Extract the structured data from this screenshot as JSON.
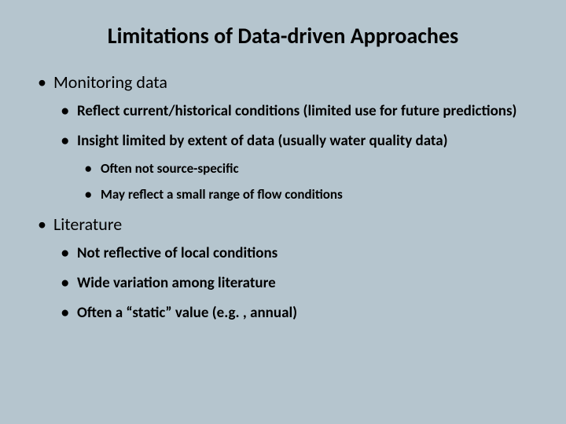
{
  "background_color": "#b5c5ce",
  "text_color": "#000000",
  "font_family": "Calibri",
  "title": {
    "text": "Limitations of Data-driven Approaches",
    "fontsize": 28,
    "weight": "bold",
    "align": "center"
  },
  "bullets": {
    "item0": {
      "label": "Monitoring data",
      "fontsize": 22,
      "children": {
        "item0": {
          "label": "Reflect current/historical conditions (limited use for future predictions)",
          "fontsize": 19
        },
        "item1": {
          "label": "Insight limited by extent of data (usually water quality data)",
          "fontsize": 19,
          "children": {
            "item0": {
              "label": "Often not source-specific",
              "fontsize": 17
            },
            "item1": {
              "label": "May reflect a small range of flow conditions",
              "fontsize": 17
            }
          }
        }
      }
    },
    "item1": {
      "label": "Literature",
      "fontsize": 22,
      "children": {
        "item0": {
          "label": "Not reflective of local conditions",
          "fontsize": 19
        },
        "item1": {
          "label": "Wide variation among literature",
          "fontsize": 19
        },
        "item2": {
          "label": "Often a “static” value (e.g. , annual)",
          "fontsize": 19
        }
      }
    }
  }
}
